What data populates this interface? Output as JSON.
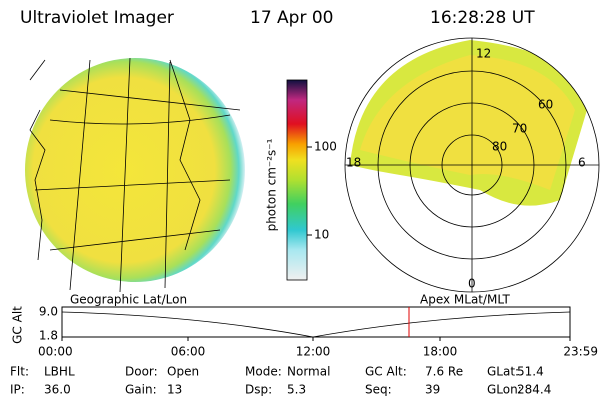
{
  "header": {
    "title": "Ultraviolet Imager",
    "date": "17 Apr 00",
    "time": "16:28:28 UT"
  },
  "colorbar": {
    "label": "photon cm⁻²s⁻¹",
    "ticks": [
      "100",
      "10"
    ]
  },
  "polar": {
    "labels": [
      "12",
      "60",
      "70",
      "80",
      "18",
      "6",
      "0"
    ]
  },
  "timeline": {
    "left_title": "Geographic Lat/Lon",
    "right_title": "Apex MLat/MLT",
    "axis_label": "GC Alt",
    "yticks": [
      "9.0",
      "1.8"
    ],
    "xticks": [
      "00:00",
      "06:00",
      "12:00",
      "18:00",
      "23:59"
    ]
  },
  "info": [
    [
      {
        "label": "Flt:",
        "value": "LBHL"
      },
      {
        "label": "Door:",
        "value": "Open"
      },
      {
        "label": "Mode:",
        "value": "Normal"
      },
      {
        "label": "GC Alt:",
        "value": "7.6 Re"
      },
      {
        "label": "GLat:",
        "value": "51.4"
      }
    ],
    [
      {
        "label": "IP:",
        "value": "36.0"
      },
      {
        "label": "Gain:",
        "value": "13"
      },
      {
        "label": "Dsp:",
        "value": "5.3"
      },
      {
        "label": "Seq:",
        "value": "39"
      },
      {
        "label": "GLon:",
        "value": "284.4"
      }
    ]
  ]
}
